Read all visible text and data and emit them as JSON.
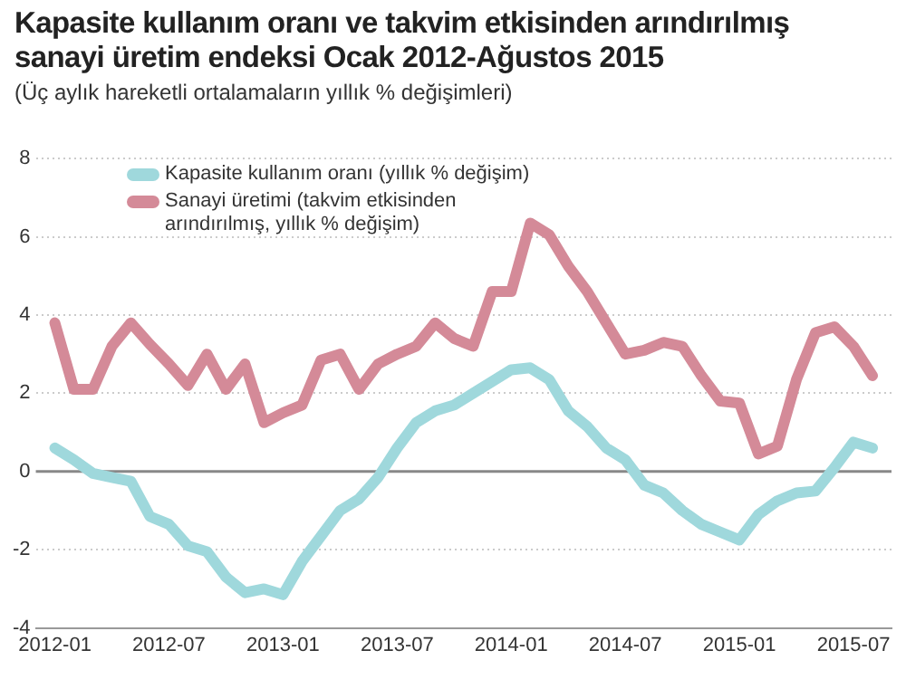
{
  "chart_data": {
    "type": "line",
    "title": "Kapasite kullanım oranı ve takvim etkisinden arındırılmış sanayi üretim endeksi Ocak 2012-Ağustos 2015",
    "subtitle": "(Üç aylık hareketli ortalamaların yıllık % değişimleri)",
    "x": [
      "2012-01",
      "2012-02",
      "2012-03",
      "2012-04",
      "2012-05",
      "2012-06",
      "2012-07",
      "2012-08",
      "2012-09",
      "2012-10",
      "2012-11",
      "2012-12",
      "2013-01",
      "2013-02",
      "2013-03",
      "2013-04",
      "2013-05",
      "2013-06",
      "2013-07",
      "2013-08",
      "2013-09",
      "2013-10",
      "2013-11",
      "2013-12",
      "2014-01",
      "2014-02",
      "2014-03",
      "2014-04",
      "2014-05",
      "2014-06",
      "2014-07",
      "2014-08",
      "2014-09",
      "2014-10",
      "2014-11",
      "2014-12",
      "2015-01",
      "2015-02",
      "2015-03",
      "2015-04",
      "2015-05",
      "2015-06",
      "2015-07",
      "2015-08"
    ],
    "series": [
      {
        "name": "Kapasite kullanım oranı (yıllık % değişim)",
        "color": "#9fd8dc",
        "values": [
          0.6,
          0.3,
          -0.05,
          -0.15,
          -0.25,
          -1.15,
          -1.35,
          -1.9,
          -2.05,
          -2.7,
          -3.1,
          -3.0,
          -3.15,
          -2.3,
          -1.65,
          -1.0,
          -0.7,
          -0.15,
          0.6,
          1.25,
          1.55,
          1.7,
          2.0,
          2.3,
          2.6,
          2.65,
          2.35,
          1.55,
          1.15,
          0.6,
          0.3,
          -0.35,
          -0.55,
          -1.0,
          -1.35,
          -1.55,
          -1.75,
          -1.1,
          -0.75,
          -0.55,
          -0.5,
          0.1,
          0.75,
          0.6
        ]
      },
      {
        "name": "Sanayi üretimi (takvim etkisinden arındırılmış, yıllık % değişim)",
        "color": "#d48a98",
        "values": [
          3.8,
          2.1,
          2.1,
          3.2,
          3.8,
          3.25,
          2.75,
          2.2,
          3.0,
          2.1,
          2.75,
          1.25,
          1.5,
          1.7,
          2.85,
          3.0,
          2.1,
          2.75,
          3.0,
          3.2,
          3.8,
          3.4,
          3.2,
          4.6,
          4.6,
          6.35,
          6.05,
          5.25,
          4.6,
          3.8,
          3.0,
          3.1,
          3.3,
          3.2,
          2.45,
          1.8,
          1.75,
          0.45,
          0.65,
          2.35,
          3.55,
          3.7,
          3.2,
          2.45
        ]
      }
    ],
    "xlim": [
      "2011-12",
      "2015-09"
    ],
    "xticks": [
      "2012-01",
      "2012-07",
      "2013-01",
      "2013-07",
      "2014-01",
      "2014-07",
      "2015-01",
      "2015-07"
    ],
    "ylim": [
      -4,
      8
    ],
    "yticks": [
      -4,
      -2,
      0,
      2,
      4,
      6,
      8
    ],
    "ref_lines": [
      {
        "axis": "y",
        "value": 0,
        "color": "#888888"
      }
    ],
    "grid": "y",
    "legend": "top left",
    "marker": "none",
    "line_style": "solid"
  }
}
